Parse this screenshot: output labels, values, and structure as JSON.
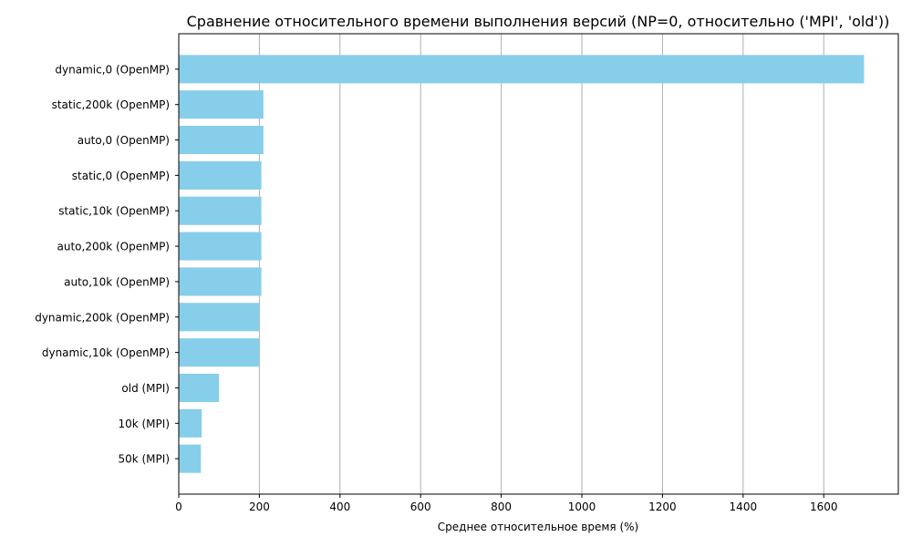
{
  "chart_data": {
    "type": "bar",
    "orientation": "horizontal",
    "title": "Сравнение относительного времени выполнения версий (NP=0, относительно ('MPI', 'old'))",
    "xlabel": "Среднее относительное время (%)",
    "ylabel": "",
    "categories": [
      "dynamic,0 (OpenMP)",
      "static,200k (OpenMP)",
      "auto,0 (OpenMP)",
      "static,0 (OpenMP)",
      "static,10k (OpenMP)",
      "auto,200k (OpenMP)",
      "auto,10k (OpenMP)",
      "dynamic,200k (OpenMP)",
      "dynamic,10k (OpenMP)",
      "old (MPI)",
      "10k (MPI)",
      "50k (MPI)"
    ],
    "values": [
      1700,
      210,
      210,
      205,
      205,
      205,
      205,
      200,
      200,
      100,
      57,
      55
    ],
    "xlim": [
      0,
      1785
    ],
    "xticks": [
      0,
      200,
      400,
      600,
      800,
      1000,
      1200,
      1400,
      1600
    ],
    "grid": "x",
    "bar_color": "#87ceeb",
    "grid_color": "#b0b0b0"
  }
}
